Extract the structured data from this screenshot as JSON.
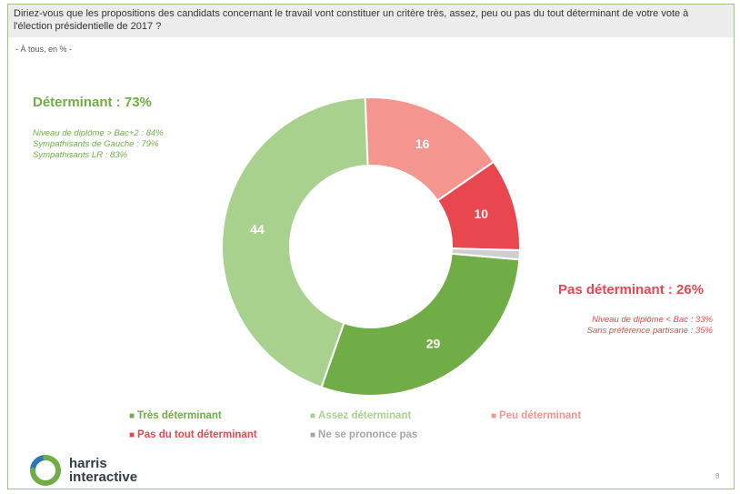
{
  "question": "Diriez-vous que les propositions des candidats concernant le travail vont constituer un critère très, assez, peu ou pas du tout déterminant de votre vote à l'élection présidentielle de 2017 ?",
  "basis": "- À tous, en % -",
  "groups": {
    "determinant": {
      "title": "Déterminant : 73%",
      "details": [
        "Niveau de diplôme > Bac+2 : 84%",
        "Sympathisants de Gauche : 79%",
        "Sympathisants LR : 83%"
      ]
    },
    "not_determinant": {
      "title": "Pas déterminant : 26%",
      "details": [
        "Niveau de diplôme < Bac : 33%",
        "Sans préférence partisane : 35%"
      ]
    }
  },
  "chart_data": {
    "type": "pie",
    "donut": true,
    "unit": "%",
    "categories": [
      "Très déterminant",
      "Assez déterminant",
      "Peu déterminant",
      "Pas du tout déterminant",
      "Ne se prononce pas"
    ],
    "values": [
      29,
      44,
      16,
      10,
      1
    ],
    "colors": [
      "#70ad47",
      "#a9d18e",
      "#f4958f",
      "#e8474f",
      "#cfcfcf"
    ],
    "legend_position": "bottom"
  },
  "legend": [
    {
      "label": "Très déterminant",
      "color": "#70ad47"
    },
    {
      "label": "Assez déterminant",
      "color": "#a9d18e"
    },
    {
      "label": "Peu déterminant",
      "color": "#f4958f"
    },
    {
      "label": "Pas du tout déterminant",
      "color": "#e8474f"
    },
    {
      "label": "Ne se prononce pas",
      "color": "#a6a6a6"
    }
  ],
  "logo": {
    "line1": "harris",
    "line2": "interactive",
    "ring_colors": [
      "#70ad47",
      "#2a78b8"
    ]
  },
  "page_number": "8"
}
